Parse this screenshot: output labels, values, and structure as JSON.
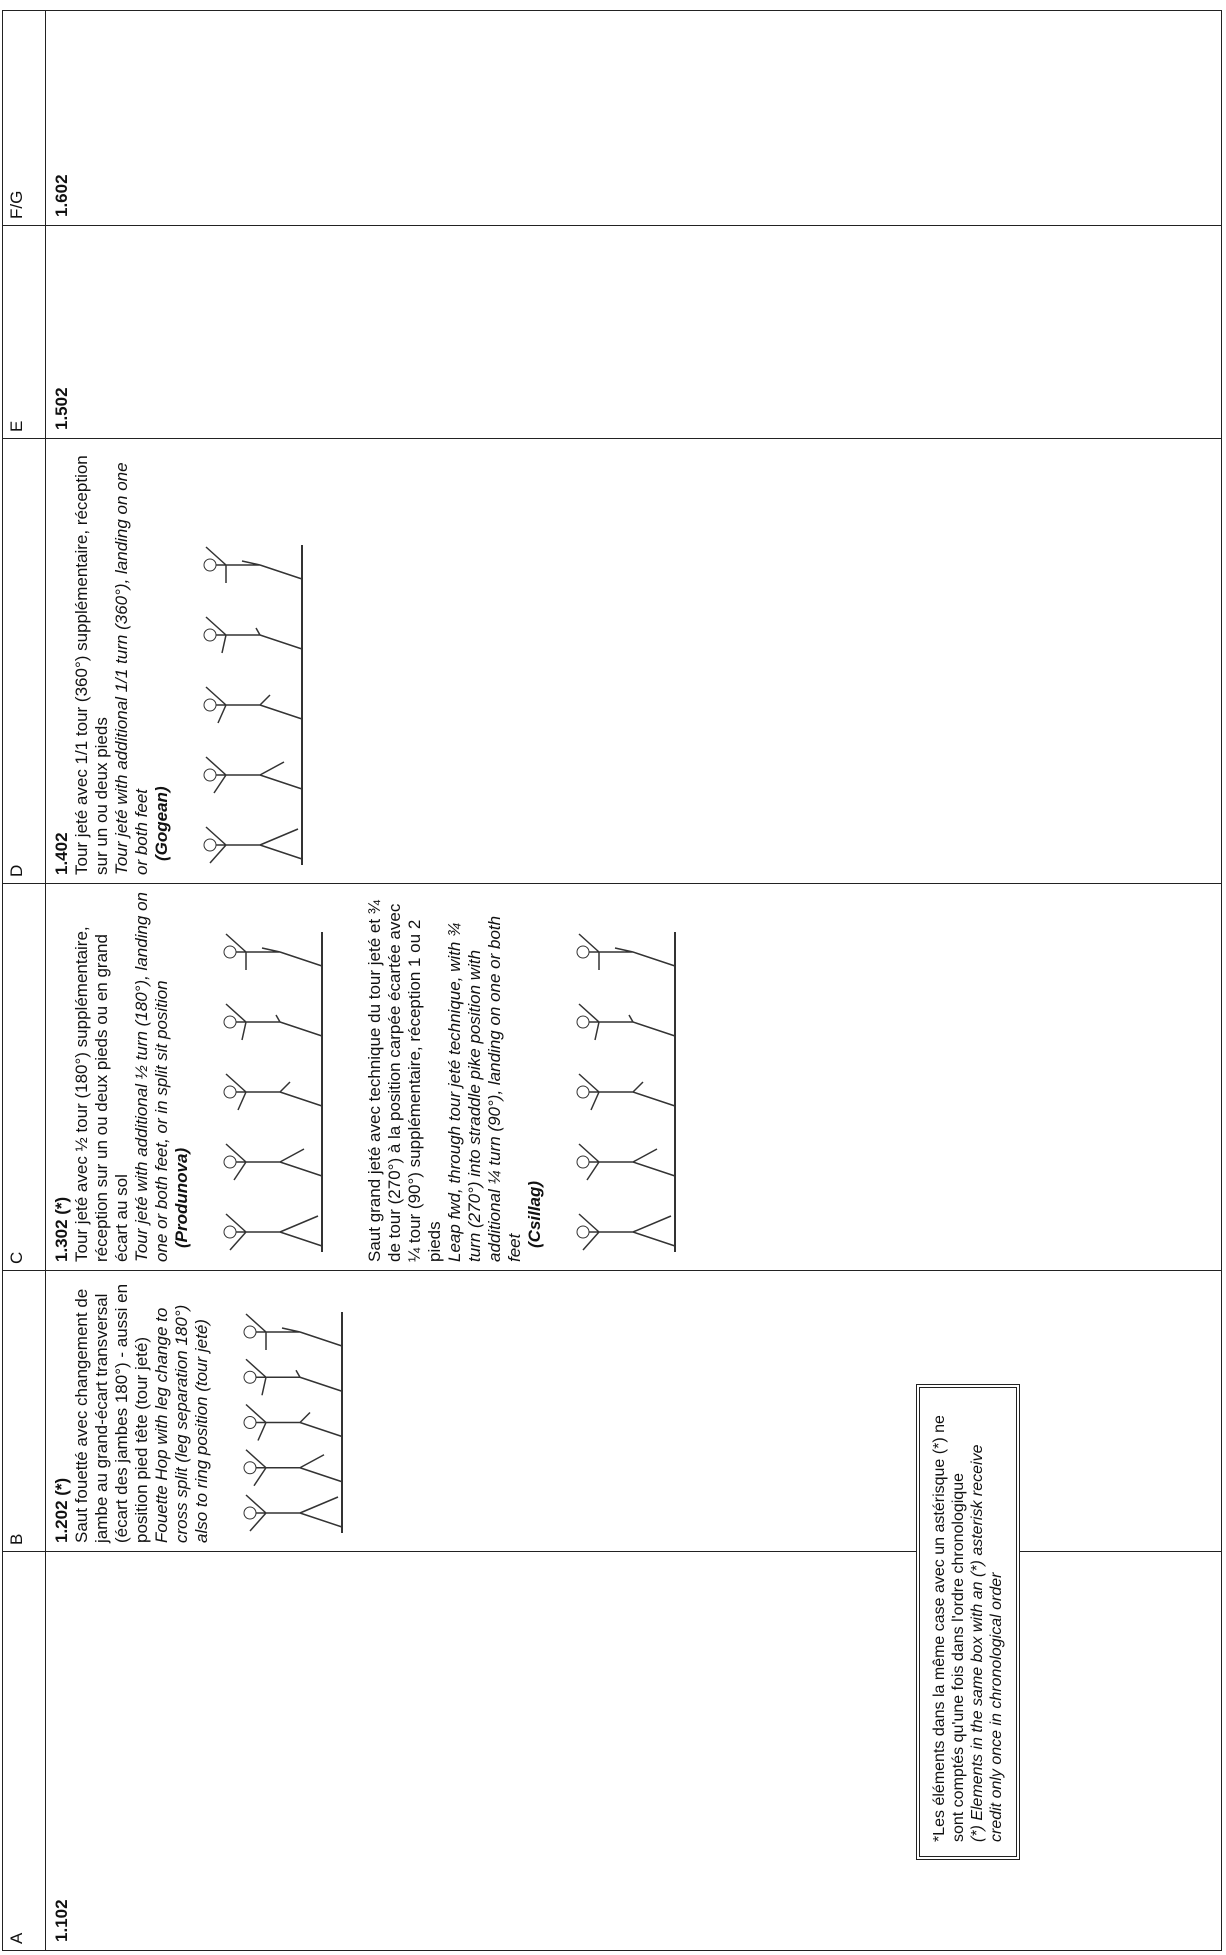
{
  "table": {
    "columns": [
      {
        "label": "A",
        "entries": [
          {
            "code": "1.102"
          }
        ]
      },
      {
        "label": "B",
        "entries": [
          {
            "code": "1.202 (*)",
            "fr": "Saut fouetté avec changement de jambe au grand-écart transversal (écart des jambes 180°) - aussi en position pied tête (tour jeté)",
            "en": "Fouette Hop with leg change to cross split (leg separation 180°) also to ring position (tour jeté)"
          }
        ]
      },
      {
        "label": "C",
        "entries": [
          {
            "code": "1.302 (*)",
            "fr": "Tour jeté avec ½ tour (180°) supplémentaire, réception sur un ou deux pieds ou en grand écart au sol",
            "en": "Tour jeté with additional ½ turn (180°), landing on one or both feet, or in split sit position",
            "name": "(Produnova)"
          },
          {
            "fr": "Saut grand jeté avec technique du tour jeté et ¾ de tour (270°) à la position carpée écartée avec ¼ tour (90°) supplémentaire, réception 1 ou 2 pieds",
            "en": "Leap fwd, through tour jeté technique, with ¾ turn (270°) into straddle pike position with additional ¼ turn (90°), landing on one or both feet",
            "name": "(Csillag)"
          }
        ]
      },
      {
        "label": "D",
        "entries": [
          {
            "code": "1.402",
            "fr": "Tour jeté avec 1/1 tour (360°) supplémentaire, réception sur un ou deux pieds",
            "en": "Tour jeté with additional 1/1 turn (360°), landing on one or both feet",
            "name": "(Gogean)"
          }
        ]
      },
      {
        "label": "E",
        "entries": [
          {
            "code": "1.502"
          }
        ]
      },
      {
        "label": "F/G",
        "entries": [
          {
            "code": "1.602"
          }
        ]
      }
    ]
  },
  "note": {
    "fr": "*Les éléments dans la même case avec un astérisque (*) ne sont comptés qu'une fois dans l'ordre chronologique",
    "en": "(*) Elements in the same box with an (*) asterisk receive credit only once in chronological order"
  }
}
